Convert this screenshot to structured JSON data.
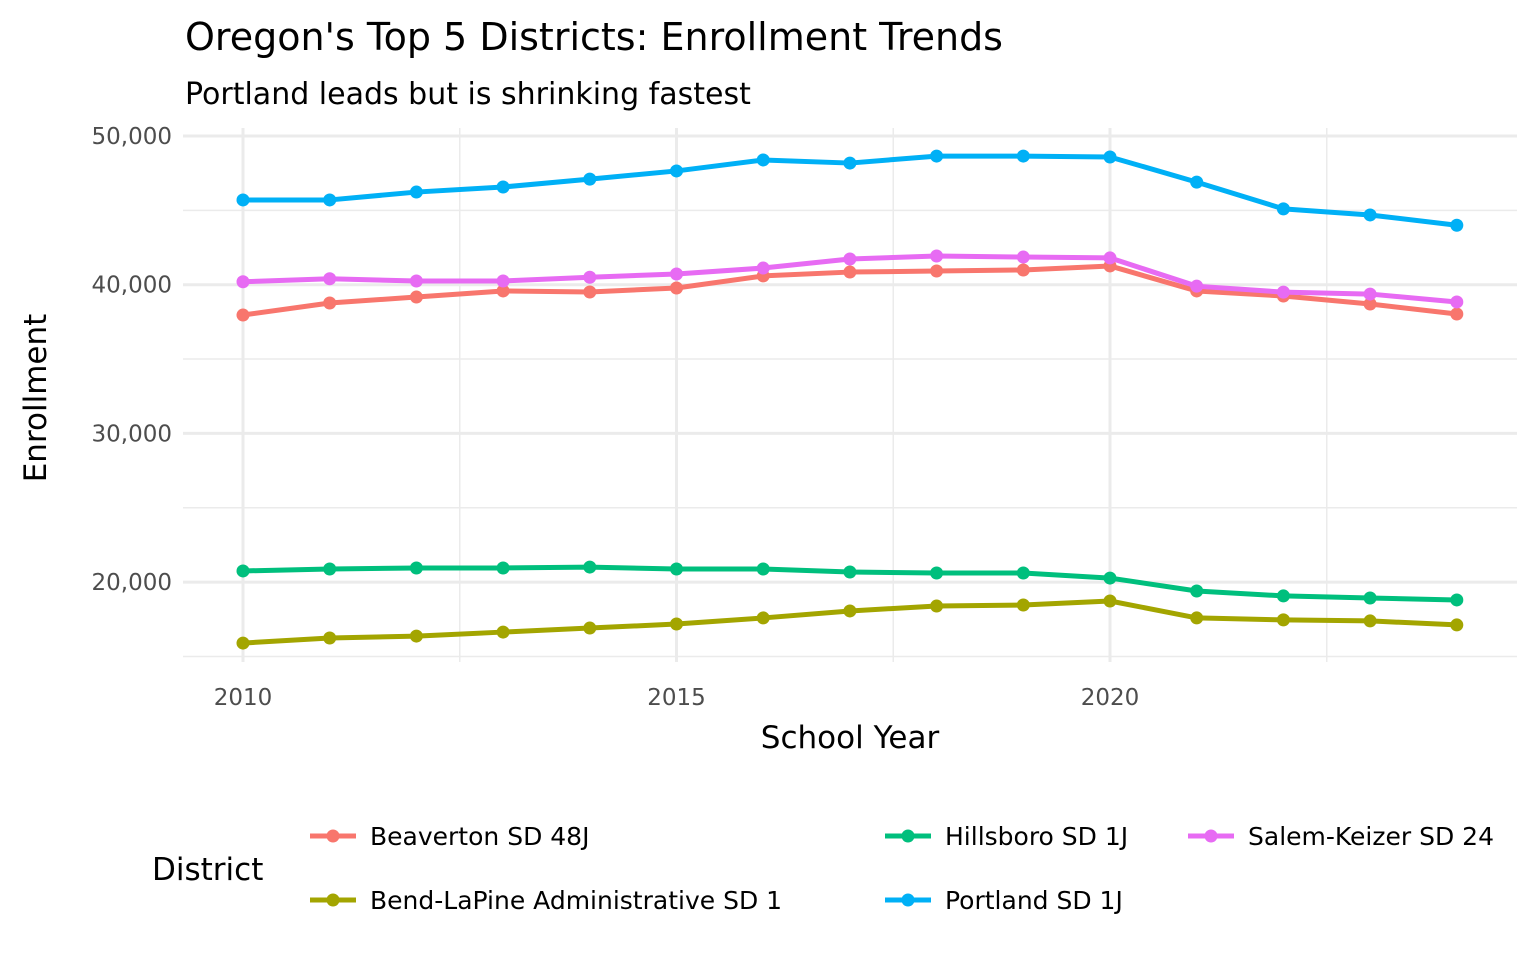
{
  "chart_data": {
    "type": "line",
    "title": "Oregon's Top 5 Districts: Enrollment Trends",
    "subtitle": "Portland leads but is shrinking fastest",
    "xlabel": "School Year",
    "ylabel": "Enrollment",
    "x": [
      2010,
      2011,
      2012,
      2013,
      2014,
      2015,
      2016,
      2017,
      2018,
      2019,
      2020,
      2021,
      2022,
      2023,
      2024
    ],
    "xlim": [
      2009.3,
      2024.7
    ],
    "ylim": [
      15000,
      50500
    ],
    "xticks": [
      2010,
      2015,
      2020
    ],
    "xtick_labels": [
      "2010",
      "2015",
      "2020"
    ],
    "yticks": [
      20000,
      30000,
      40000,
      50000
    ],
    "ytick_labels": [
      "20,000",
      "30,000",
      "40,000",
      "50,000"
    ],
    "grid": true,
    "legend": {
      "title": "District",
      "placement": "bottom"
    },
    "series": [
      {
        "name": "Beaverton SD 48J",
        "color": "#F8766D",
        "values": [
          37960,
          38770,
          39170,
          39580,
          39510,
          39780,
          40590,
          40850,
          40920,
          40990,
          41260,
          39580,
          39240,
          38700,
          38030
        ]
      },
      {
        "name": "Bend-LaPine Administrative SD 1",
        "color": "#A3A500",
        "values": [
          15900,
          16240,
          16370,
          16640,
          16910,
          17180,
          17590,
          18060,
          18390,
          18460,
          18730,
          17590,
          17460,
          17390,
          17120
        ]
      },
      {
        "name": "Hillsboro SD 1J",
        "color": "#00BF7D",
        "values": [
          20750,
          20880,
          20950,
          20950,
          21010,
          20880,
          20880,
          20680,
          20610,
          20610,
          20270,
          19400,
          19070,
          18930,
          18800
        ]
      },
      {
        "name": "Portland SD 1J",
        "color": "#00B0F6",
        "values": [
          45700,
          45700,
          46230,
          46570,
          47100,
          47650,
          48390,
          48180,
          48650,
          48650,
          48590,
          46900,
          45100,
          44690,
          44000
        ]
      },
      {
        "name": "Salem-Keizer SD 24",
        "color": "#E76BF3",
        "values": [
          40200,
          40400,
          40250,
          40250,
          40500,
          40720,
          41120,
          41730,
          41930,
          41860,
          41800,
          39900,
          39500,
          39370,
          38840
        ]
      }
    ]
  }
}
